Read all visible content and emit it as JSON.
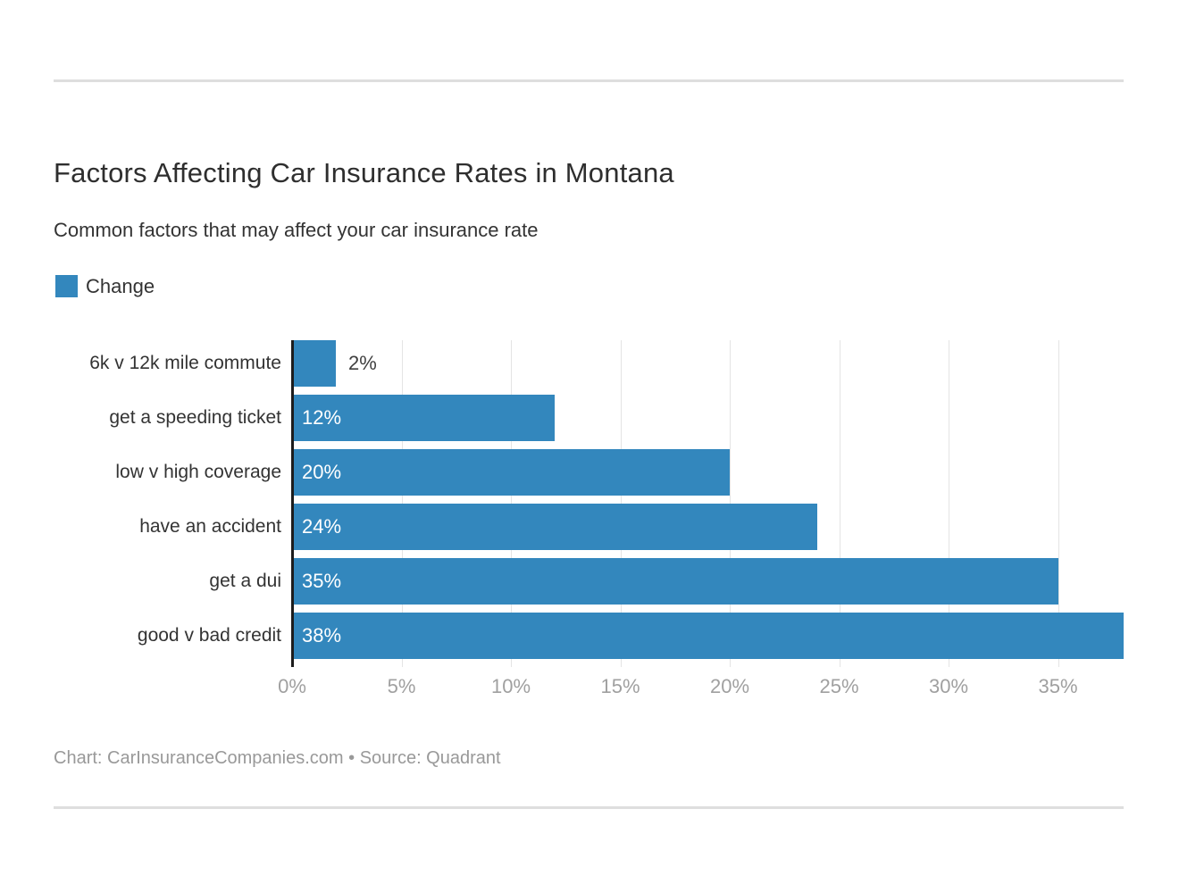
{
  "page": {
    "title": "Factors Affecting Car Insurance Rates in Montana",
    "subtitle": "Common factors that may affect your car insurance rate",
    "footer": "Chart: CarInsuranceCompanies.com • Source: Quadrant"
  },
  "legend": {
    "label": "Change",
    "color": "#3387bd"
  },
  "chart_data": {
    "type": "bar",
    "orientation": "horizontal",
    "title": "Factors Affecting Car Insurance Rates in Montana",
    "subtitle": "Common factors that may affect your car insurance rate",
    "series_name": "Change",
    "categories": [
      "6k v 12k mile commute",
      "get a speeding ticket",
      "low v high coverage",
      "have an accident",
      "get a dui",
      "good v bad credit"
    ],
    "values": [
      2,
      12,
      20,
      24,
      35,
      38
    ],
    "value_labels": [
      "2%",
      "12%",
      "20%",
      "24%",
      "35%",
      "38%"
    ],
    "xlim": [
      0,
      38
    ],
    "x_ticks": [
      0,
      5,
      10,
      15,
      20,
      25,
      30,
      35
    ],
    "x_tick_labels": [
      "0%",
      "5%",
      "10%",
      "15%",
      "20%",
      "25%",
      "30%",
      "35%"
    ],
    "bar_color": "#3387bd",
    "grid": true,
    "gridline_color": "#e4e4e4",
    "axis_line_color": "#1c1c1c",
    "legend_position": "top-left",
    "attribution": "Chart: CarInsuranceCompanies.com • Source: Quadrant"
  }
}
